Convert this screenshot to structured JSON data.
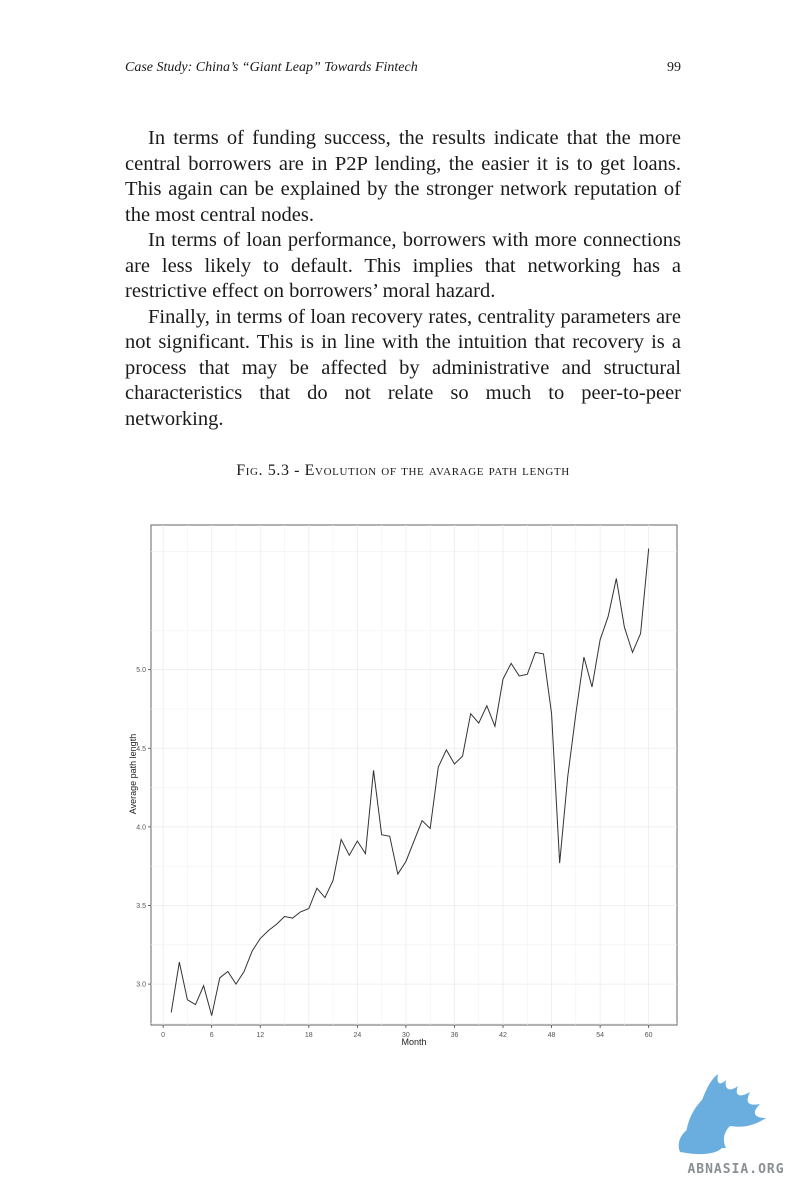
{
  "header": {
    "title": "Case Study: China’s “Giant Leap” Towards Fintech",
    "page_number": "99"
  },
  "paragraphs": [
    "In terms of funding success, the results indicate that the more central borrowers are in P2P lending, the easier it is to get loans. This again can be explained by the stronger network reputation of the most central nodes.",
    "In terms of loan performance, borrowers with more connec­tions are less likely to default. This implies that networking has a restrictive effect on borrowers’ moral hazard.",
    "Finally, in terms of loan recovery rates, centrality parame­ters are not significant. This is in line with the intuition that recovery is a process that may be affected by administrative and structural characteristics that do not relate so much to peer-to-peer networking."
  ],
  "figure": {
    "caption": "Fig. 5.3 - Evolution of the avarage path length"
  },
  "chart_data": {
    "type": "line",
    "xlabel": "Month",
    "ylabel": "Average path length",
    "xlim": [
      -1.5,
      63.5
    ],
    "ylim": [
      2.74,
      5.92
    ],
    "x_ticks": [
      0,
      6,
      12,
      18,
      24,
      30,
      36,
      42,
      48,
      54,
      60
    ],
    "y_ticks": [
      3.0,
      3.5,
      4.0,
      4.5,
      5.0
    ],
    "y_tick_labels": [
      "3.0",
      "3.5",
      "4.0",
      "4.5",
      "5.0"
    ],
    "grid": true,
    "line_color": "#333333",
    "series": [
      {
        "x": [
          1,
          2,
          3,
          4,
          5,
          6,
          7,
          8,
          9,
          10,
          11,
          12,
          13,
          14,
          15,
          16,
          17,
          18,
          19,
          20,
          21,
          22,
          23,
          24,
          25,
          26,
          27,
          28,
          29,
          30,
          31,
          32,
          33,
          34,
          35,
          36,
          37,
          38,
          39,
          40,
          41,
          42,
          43,
          44,
          45,
          46,
          47,
          48,
          49,
          50,
          51,
          52,
          53,
          54,
          55,
          56,
          57,
          58,
          59,
          60
        ],
        "values": [
          2.82,
          3.14,
          2.9,
          2.87,
          2.99,
          2.8,
          3.04,
          3.08,
          3.0,
          3.08,
          3.21,
          3.29,
          3.34,
          3.38,
          3.43,
          3.42,
          3.46,
          3.48,
          3.61,
          3.55,
          3.66,
          3.92,
          3.82,
          3.91,
          3.83,
          4.36,
          3.95,
          3.94,
          3.7,
          3.78,
          3.91,
          4.04,
          3.99,
          4.38,
          4.49,
          4.4,
          4.45,
          4.72,
          4.66,
          4.77,
          4.64,
          4.94,
          5.04,
          4.96,
          4.97,
          5.11,
          5.1,
          4.72,
          3.77,
          4.32,
          4.72,
          5.08,
          4.89,
          5.19,
          5.34,
          5.58,
          5.27,
          5.11,
          5.23,
          5.77
        ]
      }
    ]
  },
  "logo": {
    "text": "ABNASIA.ORG",
    "color": "#6aaee0"
  }
}
